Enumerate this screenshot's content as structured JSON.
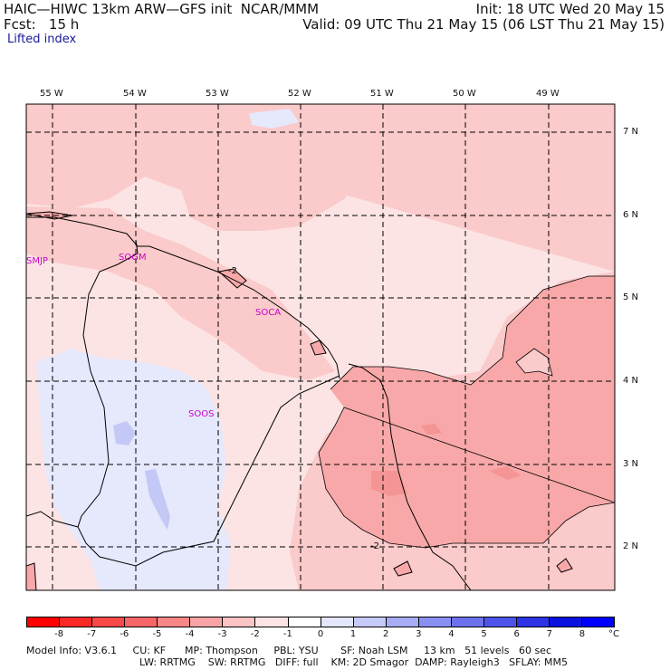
{
  "header": {
    "left_line1": "HAIC—HIWC 13km ARW—GFS init  NCAR/MMM",
    "left_line2": "Fcst:   15 h",
    "right_line1": "Init: 18 UTC Wed 20 May 15",
    "right_line2": "Valid: 09 UTC Thu 21 May 15 (06 LST Thu 21 May 15)",
    "field": "Lifted index"
  },
  "map": {
    "lon_labels": [
      "55 W",
      "54 W",
      "53 W",
      "52 W",
      "51 W",
      "50 W",
      "49 W"
    ],
    "lat_labels": [
      "7 N",
      "6 N",
      "5 N",
      "4 N",
      "3 N",
      "2 N"
    ],
    "stations": [
      "SMJP",
      "SOGM",
      "SOCA",
      "SOOS"
    ],
    "contour_labels": [
      "-2",
      "-2"
    ],
    "colors": {
      "very_light_red": "#fce4e4",
      "light_red": "#fbcaca",
      "mid_red": "#f8a8a8",
      "light_blue": "#e6e8fc",
      "blue": "#c4c8f6"
    }
  },
  "colorbar": {
    "labels": [
      "-8",
      "-7",
      "-6",
      "-5",
      "-4",
      "-3",
      "-2",
      "-1",
      "0",
      "1",
      "2",
      "3",
      "4",
      "5",
      "6",
      "7",
      "8"
    ],
    "unit": "°C",
    "colors": [
      "#ff0000",
      "#fb2828",
      "#f84848",
      "#f76666",
      "#f78686",
      "#f8a4a4",
      "#fbc4c4",
      "#fde4e4",
      "#ffffff",
      "#e4e6fc",
      "#c6caf8",
      "#a8acf5",
      "#8a90f2",
      "#6c72ee",
      "#4e54ea",
      "#2e34e6",
      "#0a12e0"
    ]
  },
  "footer": {
    "line1": "Model Info: V3.6.1     CU: KF      MP: Thompson     PBL: YSU       SF: Noah LSM     13 km   51 levels   60 sec",
    "line2": "LW: RRTMG    SW: RRTMG   DIFF: full    KM: 2D Smagor  DAMP: Rayleigh3   SFLAY: MM5"
  }
}
